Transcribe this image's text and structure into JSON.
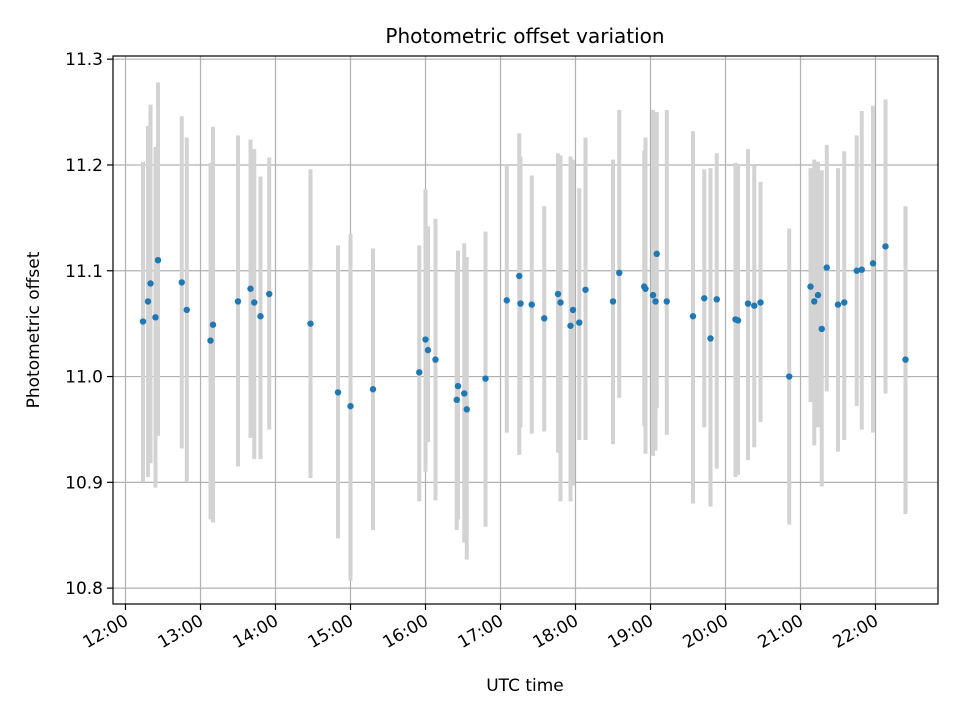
{
  "chart_data": {
    "type": "scatter",
    "title": "Photometric offset variation",
    "xlabel": "UTC time",
    "ylabel": "Photometric offset",
    "xlim": [
      "11:50",
      "22:50"
    ],
    "ylim": [
      10.785,
      11.303
    ],
    "grid": true,
    "x_ticks": [
      "12:00",
      "13:00",
      "14:00",
      "15:00",
      "16:00",
      "17:00",
      "18:00",
      "19:00",
      "20:00",
      "21:00",
      "22:00"
    ],
    "y_ticks": [
      10.8,
      10.9,
      11.0,
      11.1,
      11.2,
      11.3
    ],
    "y_tick_labels": [
      "10.8",
      "10.9",
      "11.0",
      "11.1",
      "11.2",
      "11.3"
    ],
    "colors": {
      "points": "#1f77b4",
      "error_bars": "#d3d3d3",
      "grid": "#b0b0b0"
    },
    "series": [
      {
        "x": [
          "12:14",
          "12:18",
          "12:20",
          "12:24",
          "12:26",
          "12:45",
          "12:49",
          "13:08",
          "13:10",
          "13:30",
          "13:40",
          "13:43",
          "13:48",
          "13:55",
          "14:28",
          "14:50",
          "15:00",
          "15:18",
          "15:55",
          "16:00",
          "16:02",
          "16:08",
          "16:25",
          "16:26",
          "16:31",
          "16:33",
          "16:48",
          "17:05",
          "17:15",
          "17:16",
          "17:25",
          "17:35",
          "17:46",
          "17:48",
          "17:56",
          "17:58",
          "18:03",
          "18:08",
          "18:30",
          "18:35",
          "18:55",
          "18:56",
          "19:02",
          "19:04",
          "19:05",
          "19:13",
          "19:34",
          "19:43",
          "19:48",
          "19:53",
          "20:08",
          "20:10",
          "20:18",
          "20:23",
          "20:28",
          "20:51",
          "21:08",
          "21:11",
          "21:14",
          "21:17",
          "21:21",
          "21:30",
          "21:35",
          "21:45",
          "21:49",
          "21:58",
          "22:08",
          "22:24"
        ],
        "y": [
          11.052,
          11.071,
          11.088,
          11.056,
          11.11,
          11.089,
          11.063,
          11.034,
          11.049,
          11.071,
          11.083,
          11.07,
          11.057,
          11.078,
          11.05,
          10.985,
          10.972,
          10.988,
          11.004,
          11.035,
          11.025,
          11.016,
          10.978,
          10.991,
          10.984,
          10.969,
          10.998,
          11.072,
          11.095,
          11.069,
          11.068,
          11.055,
          11.078,
          11.07,
          11.048,
          11.063,
          11.051,
          11.082,
          11.071,
          11.098,
          11.085,
          11.083,
          11.077,
          11.071,
          11.116,
          11.071,
          11.057,
          11.074,
          11.036,
          11.073,
          11.054,
          11.053,
          11.069,
          11.067,
          11.07,
          11.0,
          11.085,
          11.071,
          11.077,
          11.045,
          11.103,
          11.068,
          11.07,
          11.1,
          11.101,
          11.107,
          11.123,
          11.016
        ],
        "yerr_low": [
          10.9,
          10.905,
          10.918,
          10.895,
          10.944,
          10.932,
          10.9,
          10.865,
          10.862,
          10.915,
          10.942,
          10.922,
          10.922,
          10.95,
          10.904,
          10.847,
          10.807,
          10.855,
          10.882,
          10.91,
          10.938,
          10.883,
          10.855,
          10.865,
          10.843,
          10.827,
          10.858,
          10.947,
          10.926,
          10.952,
          10.946,
          10.948,
          10.928,
          10.882,
          10.882,
          10.897,
          10.94,
          10.94,
          10.936,
          10.98,
          10.953,
          10.927,
          10.925,
          10.93,
          10.97,
          10.945,
          10.88,
          10.952,
          10.877,
          10.913,
          10.905,
          10.907,
          10.921,
          10.933,
          10.957,
          10.86,
          10.976,
          10.935,
          10.952,
          10.896,
          10.986,
          10.929,
          10.94,
          10.972,
          10.95,
          10.947,
          10.984,
          10.87
        ],
        "yerr_high": [
          11.203,
          11.237,
          11.257,
          11.217,
          11.278,
          11.246,
          11.226,
          11.202,
          11.236,
          11.228,
          11.224,
          11.215,
          11.189,
          11.207,
          11.196,
          11.124,
          11.135,
          11.121,
          11.124,
          11.177,
          11.142,
          11.149,
          11.1,
          11.119,
          11.126,
          11.113,
          11.137,
          11.201,
          11.23,
          11.208,
          11.19,
          11.161,
          11.211,
          11.209,
          11.208,
          11.205,
          11.178,
          11.226,
          11.205,
          11.252,
          11.214,
          11.226,
          11.252,
          11.245,
          11.25,
          11.252,
          11.232,
          11.196,
          11.197,
          11.211,
          11.202,
          11.201,
          11.215,
          11.199,
          11.184,
          11.14,
          11.197,
          11.205,
          11.203,
          11.195,
          11.219,
          11.197,
          11.213,
          11.228,
          11.251,
          11.256,
          11.262,
          11.161
        ]
      }
    ]
  }
}
